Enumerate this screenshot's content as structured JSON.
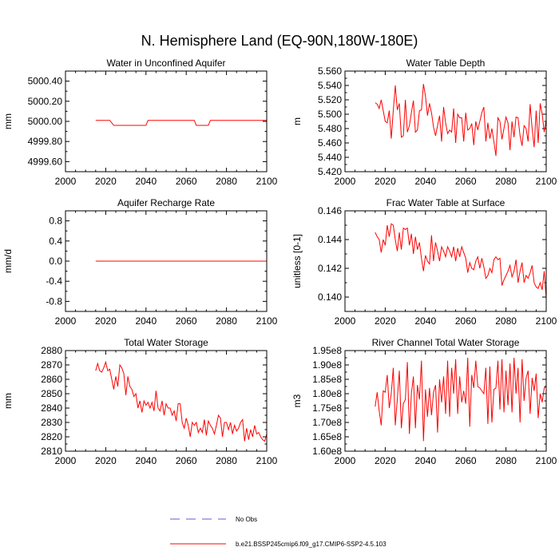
{
  "title": "N. Hemisphere Land (EQ-90N,180W-180E)",
  "series_color": "#ff0000",
  "legend": {
    "entries": [
      {
        "label": "No Obs",
        "style": "dashed",
        "color": "#6a5acd"
      },
      {
        "label": "b.e21.BSSP245cmip6.f09_g17.CMIP6-SSP2-4.5.103",
        "style": "solid",
        "color": "#ff0000"
      }
    ]
  },
  "chart_data": [
    {
      "type": "line",
      "title": "Water in Unconfined Aquifer",
      "ylabel": "mm",
      "xlim": [
        2000,
        2100
      ],
      "ylim": [
        4999.5,
        5000.5
      ],
      "xticks": [
        2000,
        2020,
        2040,
        2060,
        2080,
        2100
      ],
      "yticks": [
        4999.6,
        4999.8,
        5000.0,
        5000.2,
        5000.4
      ],
      "ytick_labels": [
        "4999.60",
        "4999.80",
        "5000.00",
        "5000.20",
        "5000.40"
      ],
      "x": [
        2015,
        2022,
        2024,
        2040,
        2041,
        2064,
        2065,
        2071,
        2072,
        2100
      ],
      "y": [
        5000.01,
        5000.01,
        4999.96,
        4999.96,
        5000.01,
        5000.01,
        4999.96,
        4999.96,
        5000.01,
        5000.01
      ]
    },
    {
      "type": "line",
      "title": "Water Table Depth",
      "ylabel": "m",
      "xlim": [
        2000,
        2100
      ],
      "ylim": [
        5.42,
        5.56
      ],
      "xticks": [
        2000,
        2020,
        2040,
        2060,
        2080,
        2100
      ],
      "yticks": [
        5.42,
        5.44,
        5.46,
        5.48,
        5.5,
        5.52,
        5.54,
        5.56
      ],
      "ytick_labels": [
        "5.420",
        "5.440",
        "5.460",
        "5.480",
        "5.500",
        "5.520",
        "5.540",
        "5.560"
      ],
      "x_start": 2015,
      "x_step": 1,
      "y": [
        5.516,
        5.514,
        5.508,
        5.52,
        5.505,
        5.49,
        5.488,
        5.505,
        5.466,
        5.505,
        5.54,
        5.506,
        5.515,
        5.468,
        5.47,
        5.52,
        5.475,
        5.484,
        5.502,
        5.519,
        5.475,
        5.478,
        5.505,
        5.506,
        5.542,
        5.525,
        5.498,
        5.515,
        5.502,
        5.482,
        5.47,
        5.484,
        5.498,
        5.462,
        5.51,
        5.488,
        5.473,
        5.478,
        5.475,
        5.508,
        5.46,
        5.5,
        5.495,
        5.495,
        5.462,
        5.502,
        5.478,
        5.48,
        5.487,
        5.457,
        5.49,
        5.478,
        5.49,
        5.502,
        5.51,
        5.462,
        5.488,
        5.466,
        5.48,
        5.462,
        5.442,
        5.495,
        5.49,
        5.465,
        5.48,
        5.496,
        5.488,
        5.45,
        5.49,
        5.468,
        5.496,
        5.495,
        5.47,
        5.456,
        5.484,
        5.48,
        5.462,
        5.514,
        5.48,
        5.454,
        5.505,
        5.46,
        5.515,
        5.5,
        5.475,
        5.492
      ]
    },
    {
      "type": "line",
      "title": "Aquifer Recharge Rate",
      "ylabel": "mm/d",
      "xlim": [
        2000,
        2100
      ],
      "ylim": [
        -1.0,
        1.0
      ],
      "xticks": [
        2000,
        2020,
        2040,
        2060,
        2080,
        2100
      ],
      "yticks": [
        -0.8,
        -0.4,
        0.0,
        0.4,
        0.8
      ],
      "ytick_labels": [
        "-0.8",
        "-0.4",
        "0.0",
        "0.4",
        "0.8"
      ],
      "x": [
        2015,
        2100
      ],
      "y": [
        0.0,
        0.0
      ]
    },
    {
      "type": "line",
      "title": "Frac Water Table at Surface",
      "ylabel": "unitless [0-1]",
      "xlim": [
        2000,
        2100
      ],
      "ylim": [
        0.139,
        0.146
      ],
      "xticks": [
        2000,
        2020,
        2040,
        2060,
        2080,
        2100
      ],
      "yticks": [
        0.14,
        0.142,
        0.144,
        0.146
      ],
      "ytick_labels": [
        "0.140",
        "0.142",
        "0.144",
        "0.146"
      ],
      "x_start": 2015,
      "x_step": 1,
      "y": [
        0.1445,
        0.1442,
        0.144,
        0.1431,
        0.144,
        0.1436,
        0.145,
        0.1442,
        0.1451,
        0.145,
        0.144,
        0.1432,
        0.1445,
        0.1433,
        0.1448,
        0.1447,
        0.1448,
        0.1436,
        0.1444,
        0.143,
        0.1442,
        0.1433,
        0.1438,
        0.1427,
        0.1418,
        0.1429,
        0.1425,
        0.1423,
        0.1443,
        0.1425,
        0.1438,
        0.1432,
        0.1425,
        0.1435,
        0.1432,
        0.1428,
        0.1435,
        0.1432,
        0.1428,
        0.1435,
        0.1425,
        0.1434,
        0.1428,
        0.1435,
        0.1431,
        0.1427,
        0.1417,
        0.1424,
        0.142,
        0.1419,
        0.1425,
        0.1428,
        0.142,
        0.1427,
        0.1421,
        0.1413,
        0.1415,
        0.142,
        0.1417,
        0.1426,
        0.1428,
        0.1426,
        0.1427,
        0.1408,
        0.1412,
        0.1415,
        0.1418,
        0.1422,
        0.1414,
        0.1418,
        0.1426,
        0.141,
        0.1418,
        0.1424,
        0.141,
        0.1415,
        0.1413,
        0.1417,
        0.1422,
        0.141,
        0.1407,
        0.1406,
        0.141,
        0.1405,
        0.1418,
        0.1399
      ]
    },
    {
      "type": "line",
      "title": "Total Water Storage",
      "ylabel": "mm",
      "xlim": [
        2000,
        2100
      ],
      "ylim": [
        2810,
        2880
      ],
      "xticks": [
        2000,
        2020,
        2040,
        2060,
        2080,
        2100
      ],
      "yticks": [
        2810,
        2820,
        2830,
        2840,
        2850,
        2860,
        2870,
        2880
      ],
      "ytick_labels": [
        "2810",
        "2820",
        "2830",
        "2840",
        "2850",
        "2860",
        "2870",
        "2880"
      ],
      "x_start": 2015,
      "x_step": 1,
      "y": [
        2866,
        2871,
        2866,
        2865,
        2868,
        2872,
        2866,
        2867,
        2860,
        2853,
        2862,
        2855,
        2870,
        2868,
        2864,
        2849,
        2862,
        2855,
        2853,
        2848,
        2850,
        2840,
        2845,
        2837,
        2845,
        2842,
        2844,
        2840,
        2844,
        2838,
        2852,
        2840,
        2838,
        2845,
        2835,
        2843,
        2840,
        2840,
        2835,
        2838,
        2831,
        2843,
        2843,
        2830,
        2826,
        2833,
        2828,
        2820,
        2830,
        2828,
        2830,
        2823,
        2826,
        2823,
        2832,
        2821,
        2831,
        2828,
        2826,
        2822,
        2828,
        2835,
        2833,
        2820,
        2830,
        2830,
        2825,
        2830,
        2822,
        2828,
        2824,
        2826,
        2830,
        2832,
        2817,
        2826,
        2818,
        2825,
        2820,
        2828,
        2822,
        2823,
        2820,
        2818,
        2817,
        2822
      ]
    },
    {
      "type": "line",
      "title": "River Channel Total Water Storage",
      "ylabel": "m3",
      "xlim": [
        2000,
        2100
      ],
      "ylim": [
        160000000,
        195000000
      ],
      "xticks": [
        2000,
        2020,
        2040,
        2060,
        2080,
        2100
      ],
      "yticks": [
        160000000,
        165000000,
        170000000,
        175000000,
        180000000,
        185000000,
        190000000,
        195000000
      ],
      "ytick_labels": [
        "1.60e8",
        "1.65e8",
        "1.70e8",
        "1.75e8",
        "1.80e8",
        "1.85e8",
        "1.90e8",
        "1.95e8"
      ],
      "x_start": 2015,
      "x_step": 1,
      "y": [
        175500000,
        180500000,
        174000000,
        169000000,
        181000000,
        180500000,
        186500000,
        175000000,
        180000000,
        189000000,
        169000000,
        178000000,
        188000000,
        168000000,
        176500000,
        178000000,
        191000000,
        166000000,
        180000000,
        186000000,
        168000000,
        183000000,
        178000000,
        191500000,
        163500000,
        181500000,
        172000000,
        182000000,
        172500000,
        180500000,
        183000000,
        166500000,
        185000000,
        177000000,
        186000000,
        173000000,
        191500000,
        172000000,
        189000000,
        180000000,
        192000000,
        173000000,
        186000000,
        177000000,
        181000000,
        176500000,
        192500000,
        168500000,
        186500000,
        182000000,
        191500000,
        182500000,
        182000000,
        181000000,
        180000000,
        189000000,
        169500000,
        189500000,
        170000000,
        181500000,
        182000000,
        191500000,
        174500000,
        192000000,
        173500000,
        188000000,
        176000000,
        190500000,
        173500000,
        192500000,
        180000000,
        189000000,
        170000000,
        192000000,
        177500000,
        185500000,
        188000000,
        173000000,
        185500000,
        181000000,
        187000000,
        171500000,
        180000000,
        177000000,
        182000000,
        182500000
      ]
    }
  ]
}
